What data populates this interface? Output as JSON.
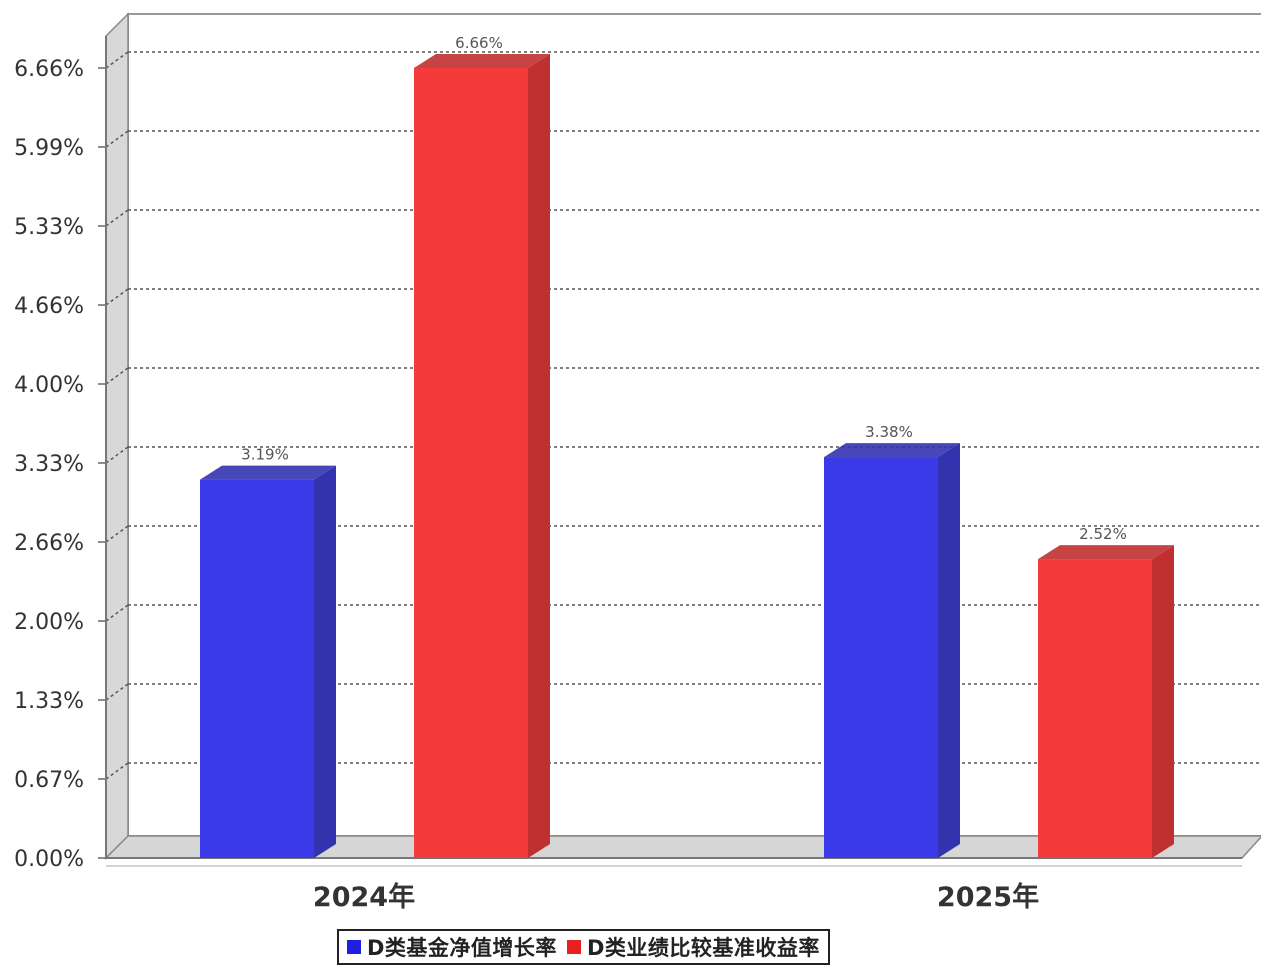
{
  "chart_data": {
    "type": "bar",
    "categories": [
      "2024年",
      "2025年"
    ],
    "series": [
      {
        "name": "D类基金净值增长率",
        "values": [
          3.19,
          3.38
        ],
        "labels": [
          "3.19%",
          "3.38%"
        ],
        "color": "#3a3ae8",
        "side_color": "#3333b0"
      },
      {
        "name": "D类业绩比较基准收益率",
        "values": [
          6.66,
          2.52
        ],
        "labels": [
          "6.66%",
          "2.52%"
        ],
        "color": "#f53a3a",
        "side_color": "#c03030"
      }
    ],
    "yticks": [
      "0.00%",
      "0.67%",
      "1.33%",
      "2.00%",
      "2.66%",
      "3.33%",
      "4.00%",
      "4.66%",
      "5.33%",
      "5.99%",
      "6.66%"
    ],
    "ylim": [
      0,
      6.66
    ],
    "grid": true,
    "legend_position": "bottom-center",
    "title": "",
    "xlabel": "",
    "ylabel": ""
  }
}
